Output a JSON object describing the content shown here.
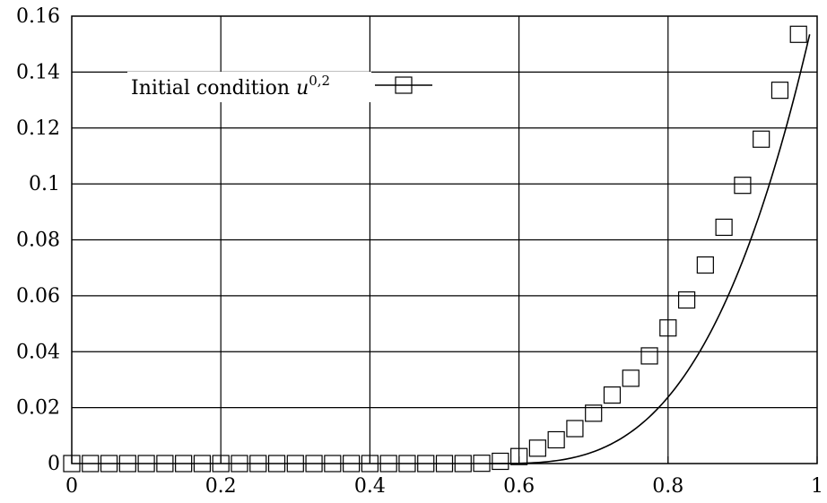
{
  "chart_data": {
    "type": "line",
    "title": "",
    "xlabel": "",
    "ylabel": "",
    "xlim": [
      0,
      1
    ],
    "ylim": [
      0,
      0.16
    ],
    "grid": true,
    "legend_placement": "top-left",
    "x_ticks": [
      "0",
      "0.2",
      "0.4",
      "0.6",
      "0.8",
      "1"
    ],
    "y_ticks": [
      "0",
      "0.02",
      "0.04",
      "0.06",
      "0.08",
      "0.1",
      "0.12",
      "0.14",
      "0.16"
    ],
    "legend": {
      "text": "Initial condition ",
      "var": "u",
      "sup": "0,2"
    },
    "series": [
      {
        "name": "Initial condition u^{0,2}",
        "marker": "square",
        "line": true,
        "x": [
          0.0,
          0.025,
          0.05,
          0.075,
          0.1,
          0.125,
          0.15,
          0.175,
          0.2,
          0.225,
          0.25,
          0.275,
          0.3,
          0.325,
          0.35,
          0.375,
          0.4,
          0.425,
          0.45,
          0.475,
          0.5,
          0.525,
          0.55,
          0.575,
          0.6,
          0.625,
          0.65,
          0.675,
          0.7,
          0.725,
          0.75,
          0.775,
          0.8,
          0.825,
          0.85,
          0.875,
          0.9,
          0.925,
          0.95,
          0.975
        ],
        "y": [
          0,
          0,
          0,
          0,
          0,
          0,
          0,
          0,
          0,
          0,
          0,
          0,
          0,
          0,
          0,
          0,
          0,
          0,
          0,
          0,
          0,
          0,
          0.0001,
          0.0008,
          0.0025,
          0.0055,
          0.0085,
          0.0125,
          0.018,
          0.0245,
          0.0305,
          0.0385,
          0.0485,
          0.0585,
          0.071,
          0.0845,
          0.0995,
          0.116,
          0.1335,
          0.1535
        ]
      }
    ]
  }
}
